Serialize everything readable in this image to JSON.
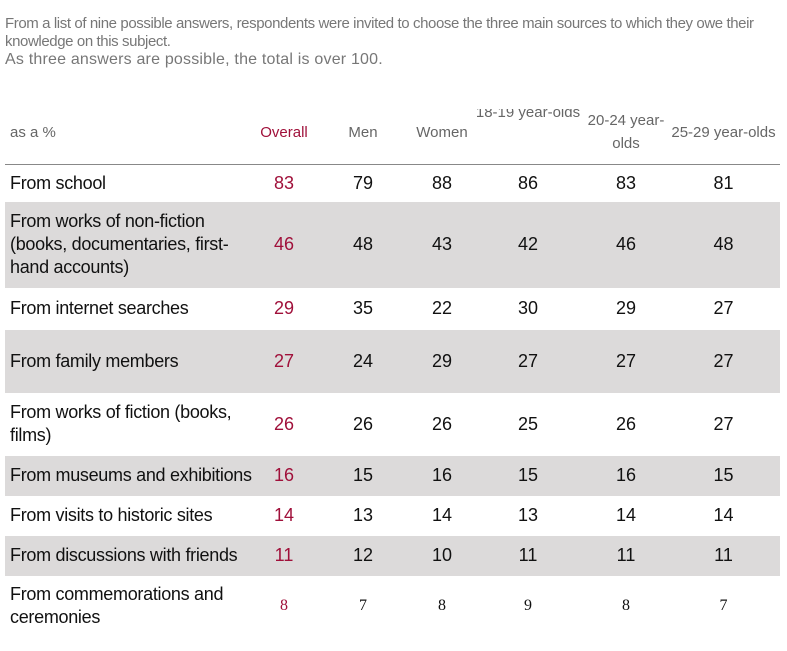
{
  "header": {
    "note": "From a list of nine possible answers, respondents were invited to choose the three main sources to which they owe their knowledge on this subject.",
    "subnote": "As three answers are possible, the total is over 100."
  },
  "table": {
    "columns": [
      "as a %",
      "Overall",
      "Men",
      "Women",
      "18-19 year-olds",
      "20-24 year-olds",
      "25-29 year-olds"
    ],
    "rows": [
      [
        "From school",
        83,
        79,
        88,
        86,
        83,
        81
      ],
      [
        "From works of non-fiction (books, documentaries, first-hand accounts)",
        46,
        48,
        43,
        42,
        46,
        48
      ],
      [
        "From internet searches",
        29,
        35,
        22,
        30,
        29,
        27
      ],
      [
        "From family members",
        27,
        24,
        29,
        27,
        27,
        27
      ],
      [
        "From works of fiction (books, films)",
        26,
        26,
        26,
        25,
        26,
        27
      ],
      [
        "From museums and exhibitions",
        16,
        15,
        16,
        15,
        16,
        15
      ],
      [
        "From visits to historic sites",
        14,
        13,
        14,
        13,
        14,
        14
      ],
      [
        "From discussions with friends",
        11,
        12,
        10,
        11,
        11,
        11
      ],
      [
        "From commemorations and ceremonies",
        8,
        7,
        8,
        9,
        8,
        7
      ]
    ]
  }
}
